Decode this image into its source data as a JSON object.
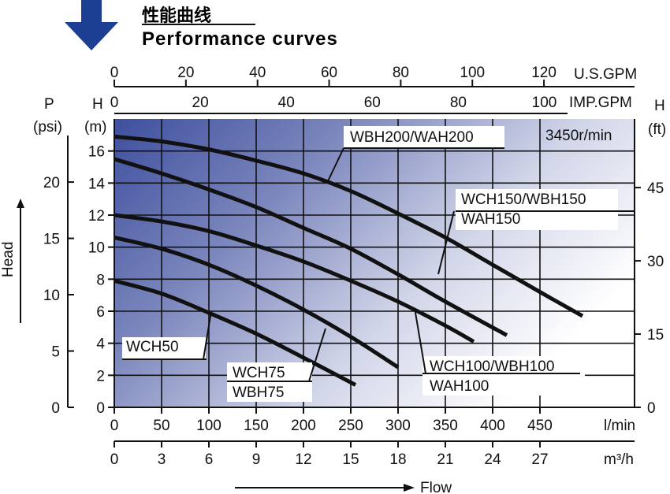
{
  "header": {
    "title_cn": "性能曲线",
    "title_en": "Performance curves",
    "speed": "3450r/min"
  },
  "chart_data": {
    "type": "line",
    "title": "Performance curves",
    "xlabel": "Flow",
    "ylabel": "Head",
    "x_unit": "l/min",
    "y_unit": "m",
    "xlim": [
      0,
      550
    ],
    "ylim": [
      0,
      18
    ],
    "grid": true,
    "x_ticks": [
      0,
      50,
      100,
      150,
      200,
      250,
      300,
      350,
      400,
      450
    ],
    "y_ticks": [
      0,
      2,
      4,
      6,
      8,
      10,
      12,
      14,
      16
    ],
    "axes": {
      "usgpm": {
        "label": "U.S.GPM",
        "ticks": [
          "0",
          "20",
          "40",
          "60",
          "80",
          "100",
          "120"
        ],
        "factor": 0.264172
      },
      "impgpm": {
        "label": "IMP.GPM",
        "ticks": [
          "0",
          "20",
          "40",
          "60",
          "80",
          "100"
        ],
        "factor": 0.219969
      },
      "lmin": {
        "label": "l/min",
        "ticks": [
          "0",
          "50",
          "100",
          "150",
          "200",
          "250",
          "300",
          "350",
          "400",
          "450"
        ]
      },
      "m3h": {
        "label": "m³/h",
        "ticks": [
          "0",
          "3",
          "6",
          "9",
          "12",
          "15",
          "18",
          "21",
          "24",
          "27"
        ],
        "factor": 0.06
      },
      "head_m": {
        "label_top": "H",
        "label_unit": "(m)",
        "ticks": [
          "0",
          "2",
          "4",
          "6",
          "8",
          "10",
          "12",
          "14",
          "16"
        ]
      },
      "psi": {
        "label_top": "P",
        "label_unit": "(psi)",
        "ticks": [
          "0",
          "5",
          "10",
          "15",
          "20"
        ],
        "factor": 1.42233
      },
      "ft": {
        "label_top": "H",
        "label_unit": "(ft)",
        "ticks": [
          "0",
          "15",
          "30",
          "45"
        ],
        "factor": 3.28084
      }
    },
    "series": [
      {
        "name": "WCH50",
        "label_lines": [
          "WCH50"
        ],
        "x": [
          0,
          50,
          100,
          150,
          200,
          255
        ],
        "y": [
          7.9,
          7.1,
          5.9,
          4.6,
          3.1,
          1.4
        ]
      },
      {
        "name": "WCH75/WBH75",
        "label_lines": [
          "WCH75",
          "WBH75"
        ],
        "x": [
          0,
          50,
          100,
          150,
          200,
          250,
          300
        ],
        "y": [
          10.6,
          9.9,
          8.9,
          7.6,
          6.1,
          4.4,
          2.5
        ]
      },
      {
        "name": "WCH100/WBH100/WAH100",
        "label_lines": [
          "WCH100/WBH100",
          "WAH100"
        ],
        "x": [
          0,
          50,
          100,
          150,
          200,
          250,
          300,
          350,
          380
        ],
        "y": [
          12.0,
          11.6,
          11.0,
          10.1,
          9.1,
          7.9,
          6.6,
          5.1,
          4.1
        ]
      },
      {
        "name": "WCH150/WBH150/WAH150",
        "label_lines": [
          "WCH150/WBH150",
          "WAH150"
        ],
        "x": [
          0,
          50,
          100,
          150,
          200,
          250,
          300,
          350,
          415
        ],
        "y": [
          15.5,
          14.6,
          13.6,
          12.5,
          11.2,
          9.9,
          8.3,
          6.6,
          4.5
        ]
      },
      {
        "name": "WBH200/WAH200",
        "label_lines": [
          "WBH200/WAH200"
        ],
        "x": [
          0,
          50,
          100,
          150,
          200,
          250,
          300,
          350,
          400,
          450,
          495
        ],
        "y": [
          16.9,
          16.6,
          16.1,
          15.4,
          14.6,
          13.5,
          12.1,
          10.6,
          8.9,
          7.2,
          5.7
        ]
      }
    ]
  }
}
